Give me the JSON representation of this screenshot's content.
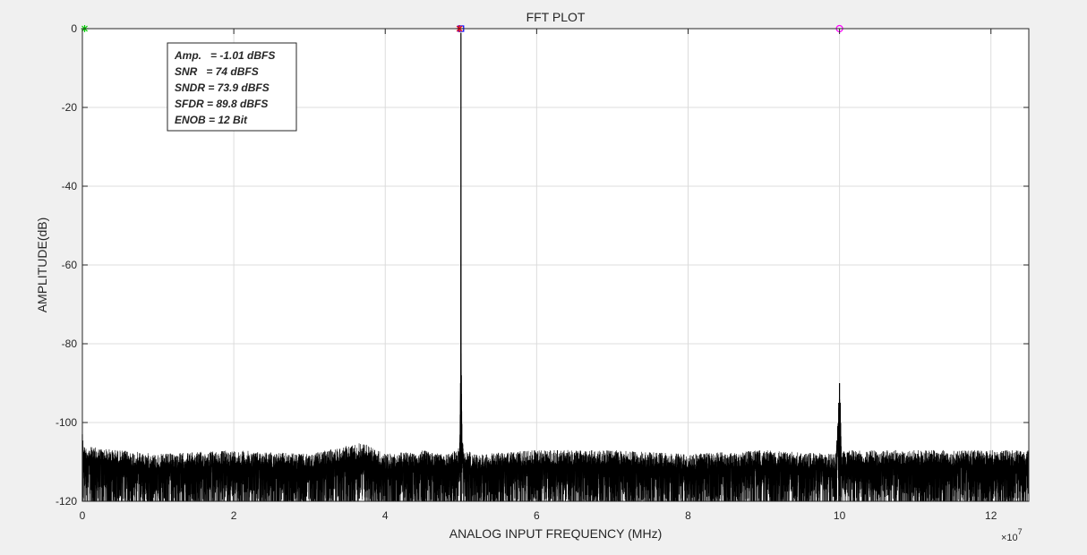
{
  "chart_data": {
    "type": "line",
    "title": "FFT PLOT",
    "xlabel": "ANALOG INPUT FREQUENCY (MHz)",
    "ylabel": "AMPLITUDE(dB)",
    "x_exponent_label": "×10",
    "x_exponent_power": "7",
    "x_scale": 10000000,
    "xlim": [
      0,
      125000000
    ],
    "ylim": [
      -120,
      0
    ],
    "grid": true,
    "x_ticks": [
      0,
      20000000,
      40000000,
      60000000,
      80000000,
      100000000,
      120000000
    ],
    "x_tick_labels": [
      "0",
      "2",
      "4",
      "6",
      "8",
      "10",
      "12"
    ],
    "y_ticks": [
      0,
      -20,
      -40,
      -60,
      -80,
      -100,
      -120
    ],
    "y_tick_labels": [
      "0",
      "-20",
      "-40",
      "-60",
      "-80",
      "-100",
      "-120"
    ],
    "series": [
      {
        "color": "#000000",
        "noise_floor": {
          "min": -120,
          "max": -104,
          "typical": -112
        },
        "x": [
          0,
          300000,
          5000000,
          10000000,
          20000000,
          30000000,
          37000000,
          40000000,
          45000000,
          48000000,
          49500000,
          49800000,
          49950000,
          50000000,
          50050000,
          50200000,
          50500000,
          52000000,
          60000000,
          70000000,
          80000000,
          90000000,
          99500000,
          99900000,
          100000000,
          100100000,
          100300000,
          100600000,
          110000000,
          120000000,
          125000000
        ],
        "y": [
          -103,
          -106,
          -107,
          -108,
          -107,
          -108,
          -105,
          -108,
          -107,
          -108,
          -107,
          -105,
          -90,
          -1.01,
          -88,
          -104,
          -107,
          -108,
          -107,
          -107,
          -108,
          -107,
          -108,
          -95,
          -90,
          -95,
          -108,
          -107,
          -107,
          -107,
          -107
        ]
      }
    ],
    "markers": [
      {
        "name": "dc-marker",
        "shape": "star",
        "color": "#00cc00",
        "x": 300000,
        "y": 0
      },
      {
        "name": "fundamental-marker",
        "shape": "square",
        "color": "#0000ff",
        "x": 50000000,
        "y": 0
      },
      {
        "name": "fundamental-star-marker",
        "shape": "star",
        "color": "#ff0000",
        "x": 49800000,
        "y": 0
      },
      {
        "name": "harmonic-marker",
        "shape": "circle",
        "color": "#ff00ff",
        "x": 100000000,
        "y": 0
      }
    ],
    "annotations": [
      "Amp.   = -1.01 dBFS",
      "SNR   = 74 dBFS",
      "SNDR = 73.9 dBFS",
      "SFDR = 89.8 dBFS",
      "ENOB = 12 Bit"
    ]
  }
}
